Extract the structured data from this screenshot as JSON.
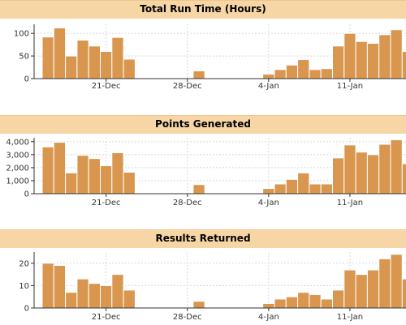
{
  "colors": {
    "bar_fill": "#d9964f",
    "bar_stroke": "#ffffff",
    "header_bg": "#f7d6a6",
    "grid": "#d8d8d8",
    "axis": "#333333"
  },
  "chart_data": [
    {
      "type": "bar",
      "title": "Total Run Time (Hours)",
      "x_tick_labels": [
        "21-Dec",
        "28-Dec",
        "4-Jan",
        "11-Jan"
      ],
      "y_tick_labels": [
        "0",
        "50",
        "100"
      ],
      "ylim": [
        0,
        120
      ],
      "grid": true,
      "x": [
        "Dec 16",
        "Dec 17",
        "Dec 18",
        "Dec 19",
        "Dec 20",
        "Dec 21",
        "Dec 22",
        "Dec 23",
        "Dec 24",
        "Dec 25",
        "Dec 26",
        "Dec 27",
        "Dec 28",
        "Dec 29",
        "Dec 30",
        "Dec 31",
        "Jan 1",
        "Jan 2",
        "Jan 3",
        "Jan 4",
        "Jan 5",
        "Jan 6",
        "Jan 7",
        "Jan 8",
        "Jan 9",
        "Jan 10",
        "Jan 11",
        "Jan 12",
        "Jan 13",
        "Jan 14",
        "Jan 15",
        "Jan 16"
      ],
      "values": [
        92,
        112,
        50,
        85,
        72,
        60,
        91,
        43,
        0,
        0,
        0,
        0,
        0,
        17,
        0,
        0,
        0,
        0,
        0,
        10,
        20,
        30,
        42,
        20,
        22,
        72,
        100,
        82,
        78,
        97,
        108,
        60
      ]
    },
    {
      "type": "bar",
      "title": "Points Generated",
      "x_tick_labels": [
        "21-Dec",
        "28-Dec",
        "4-Jan",
        "11-Jan"
      ],
      "y_tick_labels": [
        "0",
        "1,000",
        "2,000",
        "3,000",
        "4,000"
      ],
      "ylim": [
        0,
        4300
      ],
      "grid": true,
      "x": [
        "Dec 16",
        "Dec 17",
        "Dec 18",
        "Dec 19",
        "Dec 20",
        "Dec 21",
        "Dec 22",
        "Dec 23",
        "Dec 24",
        "Dec 25",
        "Dec 26",
        "Dec 27",
        "Dec 28",
        "Dec 29",
        "Dec 30",
        "Dec 31",
        "Jan 1",
        "Jan 2",
        "Jan 3",
        "Jan 4",
        "Jan 5",
        "Jan 6",
        "Jan 7",
        "Jan 8",
        "Jan 9",
        "Jan 10",
        "Jan 11",
        "Jan 12",
        "Jan 13",
        "Jan 14",
        "Jan 15",
        "Jan 16"
      ],
      "values": [
        3600,
        3950,
        1600,
        2950,
        2700,
        2150,
        3150,
        1650,
        0,
        0,
        0,
        0,
        0,
        700,
        0,
        0,
        0,
        0,
        0,
        400,
        750,
        1100,
        1600,
        750,
        750,
        2750,
        3750,
        3200,
        3000,
        3800,
        4150,
        2300
      ]
    },
    {
      "type": "bar",
      "title": "Results Returned",
      "x_tick_labels": [
        "21-Dec",
        "28-Dec",
        "4-Jan",
        "11-Jan"
      ],
      "y_tick_labels": [
        "0",
        "10",
        "20"
      ],
      "ylim": [
        0,
        25
      ],
      "grid": true,
      "x": [
        "Dec 16",
        "Dec 17",
        "Dec 18",
        "Dec 19",
        "Dec 20",
        "Dec 21",
        "Dec 22",
        "Dec 23",
        "Dec 24",
        "Dec 25",
        "Dec 26",
        "Dec 27",
        "Dec 28",
        "Dec 29",
        "Dec 30",
        "Dec 31",
        "Jan 1",
        "Jan 2",
        "Jan 3",
        "Jan 4",
        "Jan 5",
        "Jan 6",
        "Jan 7",
        "Jan 8",
        "Jan 9",
        "Jan 10",
        "Jan 11",
        "Jan 12",
        "Jan 13",
        "Jan 14",
        "Jan 15",
        "Jan 16"
      ],
      "values": [
        20,
        19,
        7,
        13,
        11,
        10,
        15,
        8,
        0,
        0,
        0,
        0,
        0,
        3,
        0,
        0,
        0,
        0,
        0,
        2,
        4,
        5,
        7,
        6,
        4,
        8,
        17,
        15,
        17,
        22,
        24,
        13
      ]
    }
  ]
}
